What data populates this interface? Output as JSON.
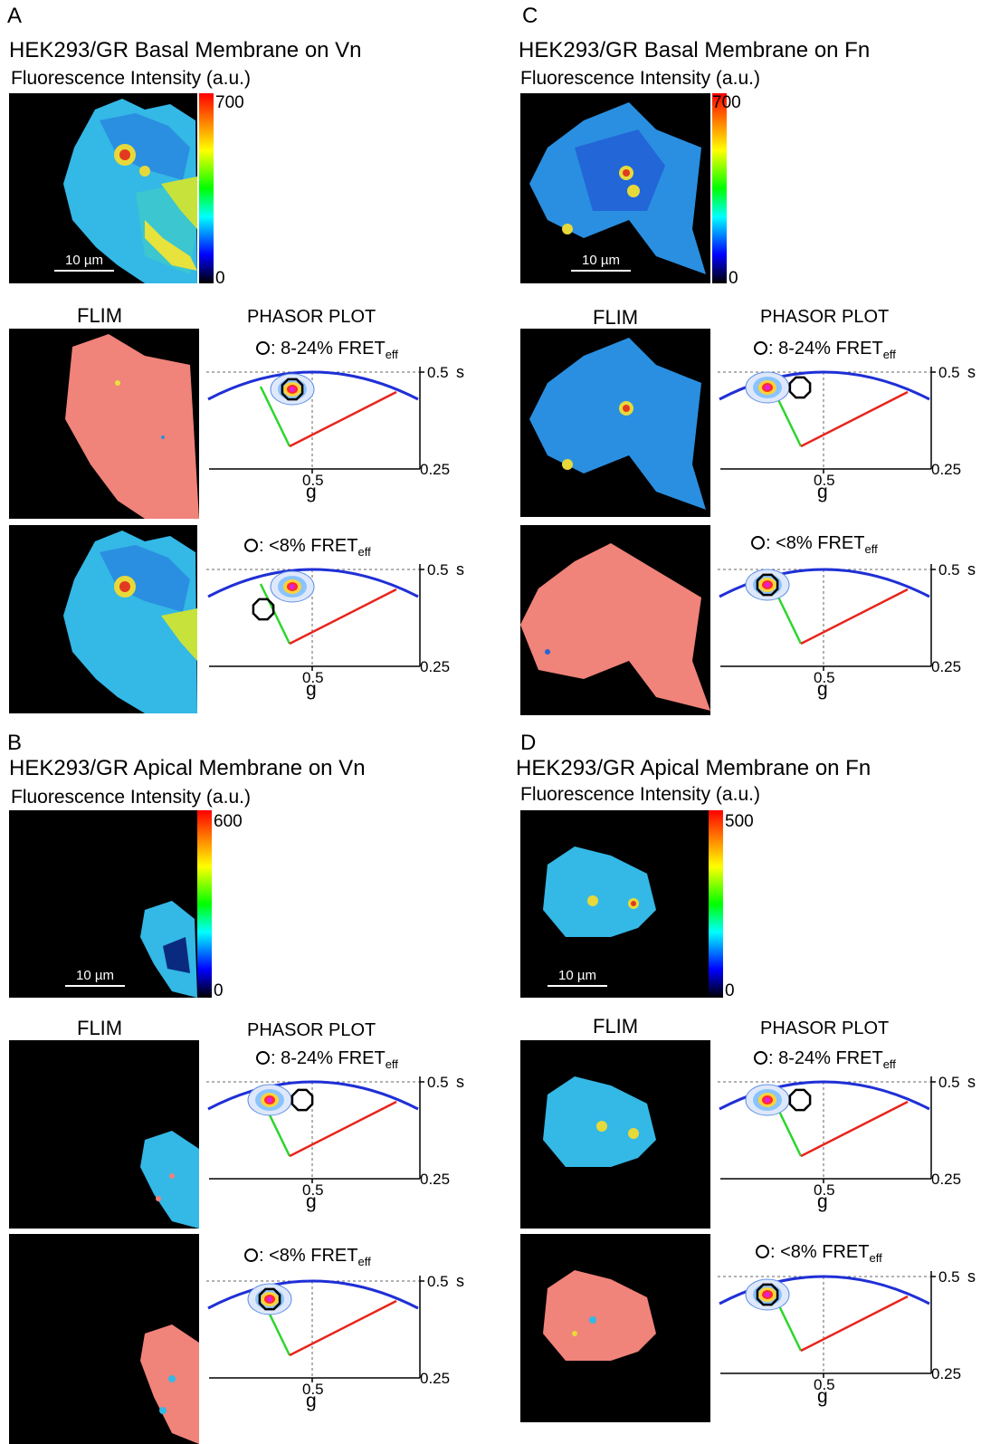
{
  "panels": [
    {
      "letter": "A",
      "title": "HEK293/GR  Basal Membrane on Vn",
      "subtitle": "Fluorescence Intensity (a.u.)",
      "colorbar": {
        "max": "700",
        "min": "0"
      },
      "scale_bar": "10 µm",
      "flim_label": "FLIM",
      "phasor_title": "PHASOR PLOT",
      "rows": [
        {
          "legend_range": ": 8-24% FRET",
          "legend_sub": "eff",
          "s_max": "0.5",
          "s_min": "0.25",
          "s_label": "s",
          "g_tick": "0.5",
          "g_label": "g"
        },
        {
          "legend_range": ": <8% FRET",
          "legend_sub": "eff",
          "s_max": "0.5",
          "s_min": "0.25",
          "s_label": "s",
          "g_tick": "0.5",
          "g_label": "g"
        }
      ]
    },
    {
      "letter": "C",
      "title": "HEK293/GR  Basal Membrane on Fn",
      "subtitle": "Fluorescence Intensity (a.u.)",
      "colorbar": {
        "max": "700",
        "min": "0"
      },
      "scale_bar": "10 µm",
      "flim_label": "FLIM",
      "phasor_title": "PHASOR PLOT",
      "rows": [
        {
          "legend_range": ": 8-24% FRET",
          "legend_sub": "eff",
          "s_max": "0.5",
          "s_min": "0.25",
          "s_label": "s",
          "g_tick": "0.5",
          "g_label": "g"
        },
        {
          "legend_range": ": <8% FRET",
          "legend_sub": "eff",
          "s_max": "0.5",
          "s_min": "0.25",
          "s_label": "s",
          "g_tick": "0.5",
          "g_label": "g"
        }
      ]
    },
    {
      "letter": "B",
      "title": "HEK293/GR  Apical Membrane on Vn",
      "subtitle": "Fluorescence Intensity (a.u.)",
      "colorbar": {
        "max": "600",
        "min": "0"
      },
      "scale_bar": "10 µm",
      "flim_label": "FLIM",
      "phasor_title": "PHASOR PLOT",
      "rows": [
        {
          "legend_range": ": 8-24% FRET",
          "legend_sub": "eff",
          "s_max": "0.5",
          "s_min": "0.25",
          "s_label": "s",
          "g_tick": "0.5",
          "g_label": "g"
        },
        {
          "legend_range": ": <8% FRET",
          "legend_sub": "eff",
          "s_max": "0.5",
          "s_min": "0.25",
          "s_label": "s",
          "g_tick": "0.5",
          "g_label": "g"
        }
      ]
    },
    {
      "letter": "D",
      "title": "HEK293/GR  Apical Membrane on Fn",
      "subtitle": "Fluorescence Intensity (a.u.)",
      "colorbar": {
        "max": "500",
        "min": "0"
      },
      "scale_bar": "10 µm",
      "flim_label": "FLIM",
      "phasor_title": "PHASOR PLOT",
      "rows": [
        {
          "legend_range": ": 8-24% FRET",
          "legend_sub": "eff",
          "s_max": "0.5",
          "s_min": "0.25",
          "s_label": "s",
          "g_tick": "0.5",
          "g_label": "g"
        },
        {
          "legend_range": ": <8% FRET",
          "legend_sub": "eff",
          "s_max": "0.5",
          "s_min": "0.25",
          "s_label": "s",
          "g_tick": "0.5",
          "g_label": "g"
        }
      ]
    }
  ],
  "colors": {
    "semicircle": "#1f2fd6",
    "trajectory_red": "#e8241c",
    "trajectory_green": "#2bd62b",
    "flim_fret": "#f0837a",
    "cell_cyan": "#34b8e6",
    "cell_blue": "#2266d8"
  }
}
